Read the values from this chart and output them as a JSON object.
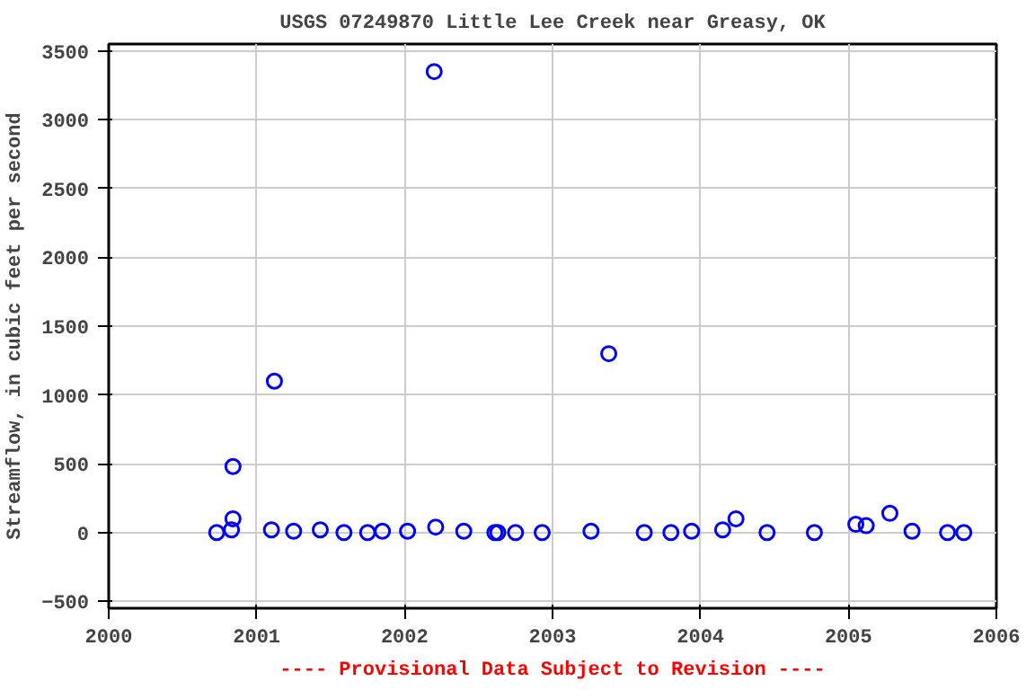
{
  "chart_data": {
    "type": "scatter",
    "title": "USGS 07249870 Little Lee Creek near Greasy, OK",
    "ylabel": "Streamflow, in cubic feet per second",
    "annotations": [
      "---- Provisional Data Subject to Revision ----"
    ],
    "x": [
      2000.73,
      2000.83,
      2000.84,
      2000.84,
      2001.1,
      2001.12,
      2001.25,
      2001.43,
      2001.59,
      2001.75,
      2001.85,
      2002.02,
      2002.2,
      2002.21,
      2002.4,
      2002.61,
      2002.63,
      2002.75,
      2002.93,
      2003.26,
      2003.38,
      2003.62,
      2003.8,
      2003.94,
      2004.15,
      2004.24,
      2004.45,
      2004.77,
      2005.05,
      2005.12,
      2005.28,
      2005.43,
      2005.67,
      2005.78
    ],
    "series": [
      {
        "color": "#0000ff",
        "values": [
          0,
          20,
          100,
          480,
          20,
          1100,
          10,
          20,
          0,
          0,
          10,
          10,
          3350,
          40,
          10,
          0,
          0,
          0,
          0,
          10,
          1300,
          0,
          0,
          10,
          20,
          100,
          0,
          0,
          60,
          50,
          140,
          10,
          0,
          0
        ]
      }
    ],
    "xlim": [
      2000,
      2006
    ],
    "xticks": [
      2000,
      2001,
      2002,
      2003,
      2004,
      2005,
      2006
    ],
    "ylim": [
      -550,
      3550
    ],
    "yticks": [
      -500,
      0,
      500,
      1000,
      1500,
      2000,
      2500,
      3000,
      3500
    ],
    "grid": true,
    "marker": "circle"
  }
}
